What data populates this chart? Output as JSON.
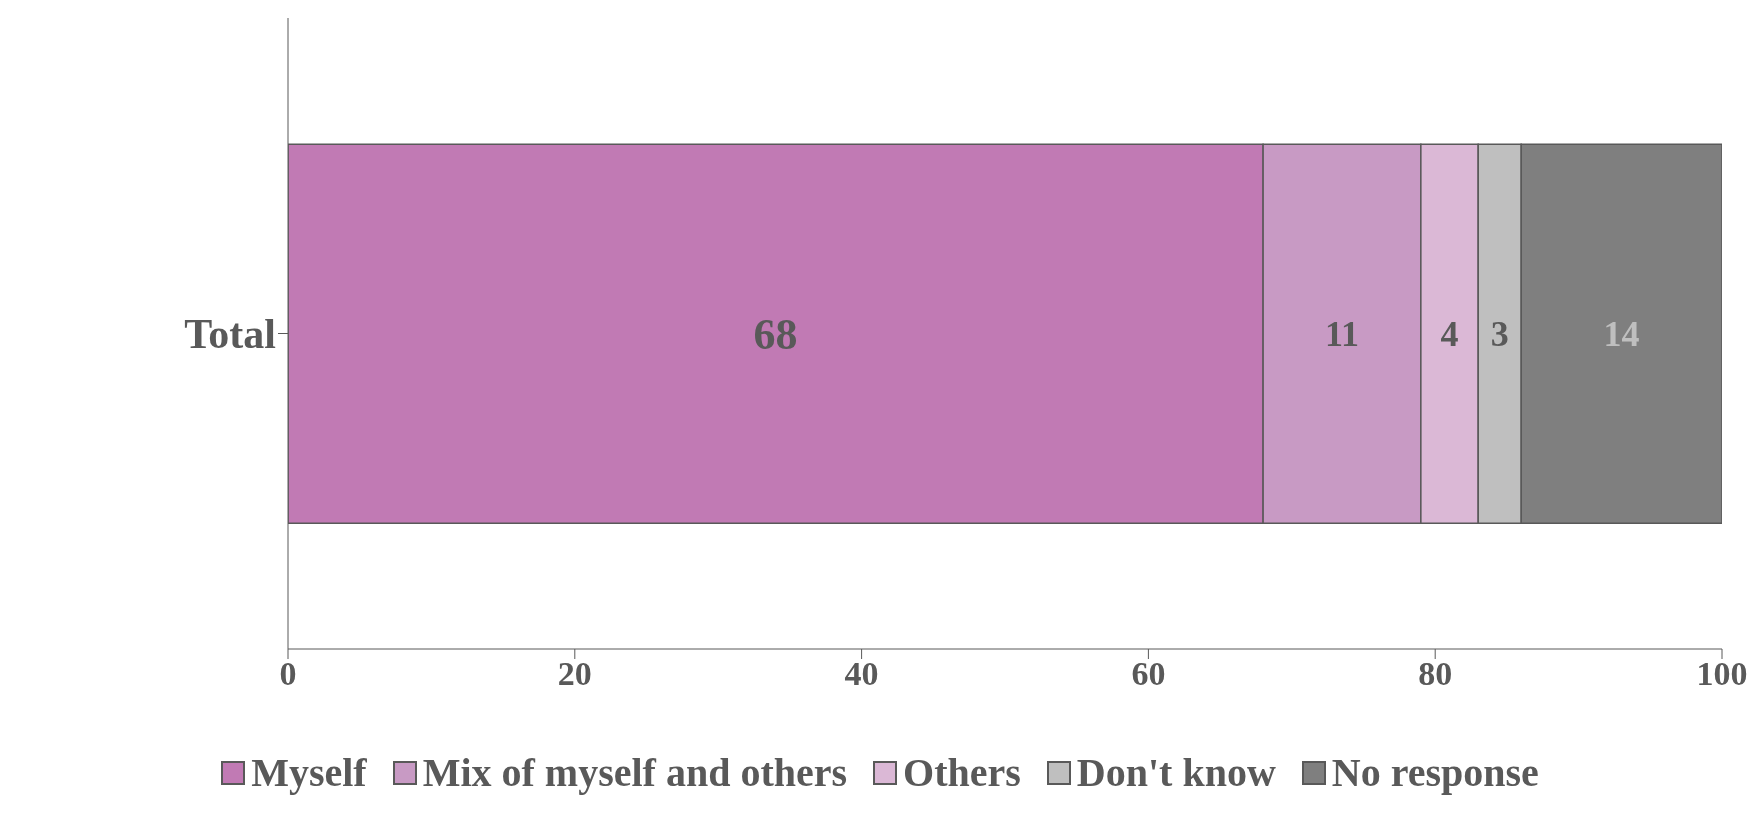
{
  "chart_data": {
    "type": "bar",
    "orientation": "horizontal",
    "stacked": true,
    "categories": [
      "Total"
    ],
    "series": [
      {
        "name": "Myself",
        "color": "#c17ab4",
        "values": [
          68
        ]
      },
      {
        "name": "Mix of myself and others",
        "color": "#c89ac4",
        "values": [
          11
        ]
      },
      {
        "name": "Others",
        "color": "#dbb8d6",
        "values": [
          4
        ]
      },
      {
        "name": "Don't know",
        "color": "#bfbfbf",
        "values": [
          3
        ]
      },
      {
        "name": "No response",
        "color": "#7f7f7f",
        "values": [
          14
        ]
      }
    ],
    "xlim": [
      0,
      100
    ],
    "xticks": [
      0,
      20,
      40,
      60,
      80,
      100
    ],
    "data_labels": true,
    "grid": false,
    "legend": "bottom"
  }
}
